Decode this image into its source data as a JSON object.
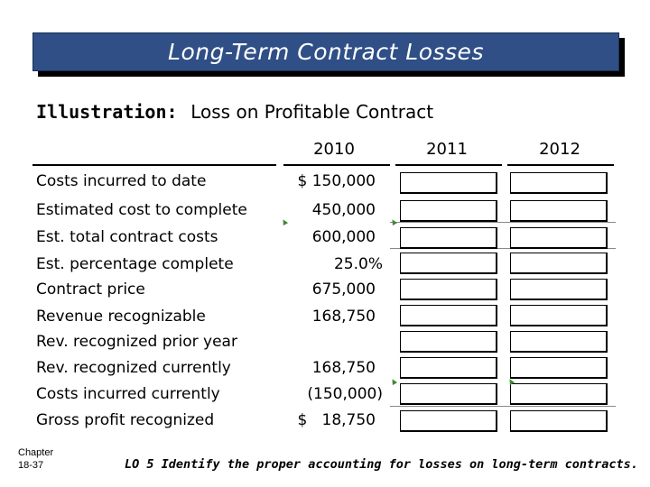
{
  "title": "Long-Term Contract Losses",
  "illustration": {
    "label": "Illustration:",
    "subtitle": "Loss on Profitable Contract"
  },
  "columns": [
    "2010",
    "2011",
    "2012"
  ],
  "rows": [
    {
      "label": "Costs incurred to date",
      "values": [
        "$ 150,000",
        "",
        ""
      ]
    },
    {
      "label": "Estimated cost to complete",
      "values": [
        "450,000",
        "",
        ""
      ]
    },
    {
      "label": "Est. total contract costs",
      "values": [
        "600,000",
        "",
        ""
      ]
    },
    {
      "label": "Est. percentage complete",
      "values": [
        "25.0%",
        "",
        ""
      ]
    },
    {
      "label": "Contract price",
      "values": [
        "675,000",
        "",
        ""
      ]
    },
    {
      "label": "Revenue recognizable",
      "values": [
        "168,750",
        "",
        ""
      ]
    },
    {
      "label": "Rev. recognized prior year",
      "values": [
        "",
        "",
        ""
      ]
    },
    {
      "label": "Rev. recognized currently",
      "values": [
        "168,750",
        "",
        ""
      ]
    },
    {
      "label": "Costs incurred currently",
      "values": [
        "(150,000)",
        "",
        ""
      ]
    },
    {
      "label": "Gross profit recognized",
      "values": [
        "$   18,750",
        "",
        ""
      ]
    }
  ],
  "footer": {
    "chapter_line1": "Chapter",
    "chapter_line2": "18-37",
    "learning_objective": "LO 5 Identify the proper accounting for losses on long-term contracts."
  }
}
